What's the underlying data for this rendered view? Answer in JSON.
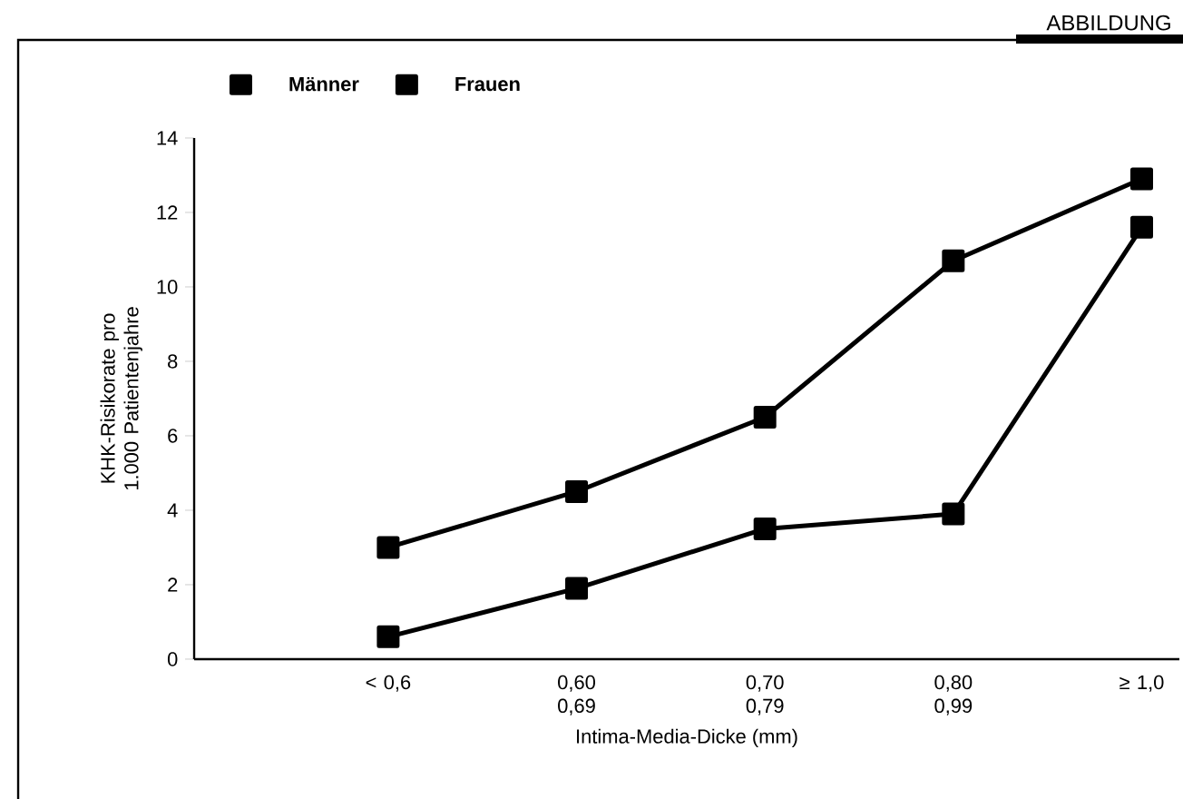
{
  "chart_data": {
    "type": "line",
    "title": "ABBILDUNG",
    "categories": [
      "< 0,6",
      "0,60 0,69",
      "0,70 0,79",
      "0,80 0,99",
      "≥ 1,0"
    ],
    "series": [
      {
        "name": "Männer",
        "color": "#000000",
        "values": [
          3.0,
          4.5,
          6.5,
          10.7,
          12.9
        ]
      },
      {
        "name": "Frauen",
        "color": "#000000",
        "values": [
          0.6,
          1.9,
          3.5,
          3.9,
          11.6
        ]
      }
    ],
    "xlabel": "Intima-Media-Dicke (mm)",
    "ylabel": "KHK-Risikorate pro 1.000 Patientenjahre",
    "ylim": [
      0,
      14
    ],
    "yticks": [
      0,
      2,
      4,
      6,
      8,
      10,
      12,
      14
    ],
    "legend": "top left",
    "marker": "square",
    "line_style": "solid",
    "grid": false
  }
}
